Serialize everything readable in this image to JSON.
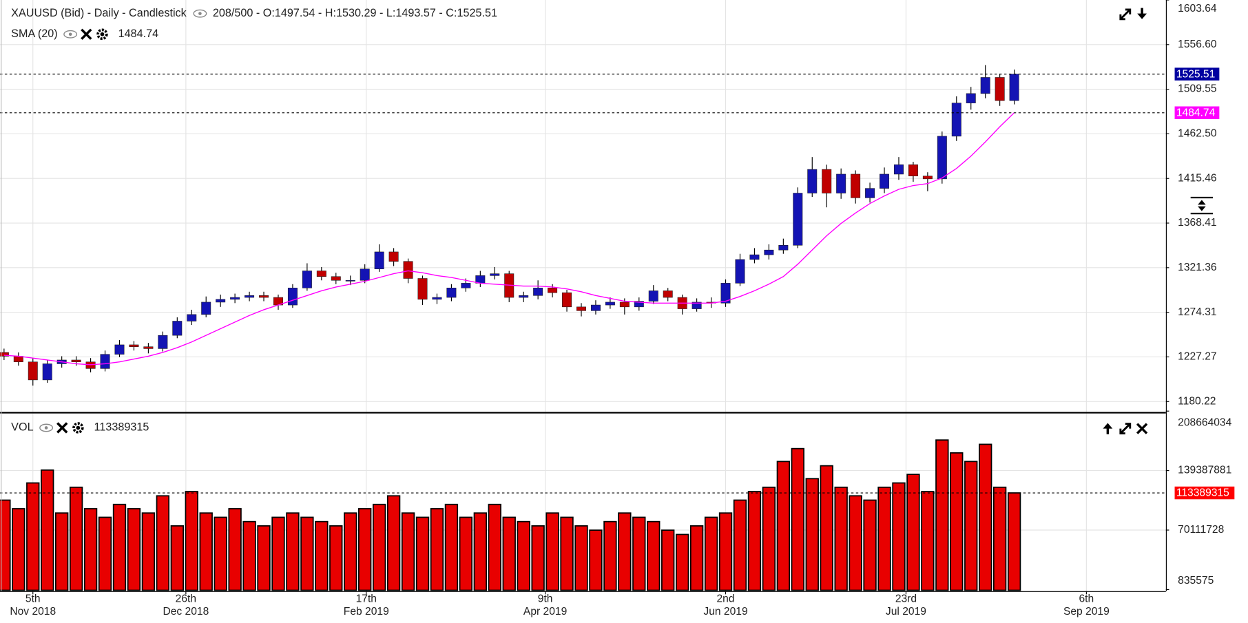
{
  "chart_data": {
    "type": "candlestick",
    "title": "XAUUSD (Bid) - Daily - Candlestick",
    "bars_info": "208/500 - O:1497.54 - H:1530.29 - L:1493.57 - C:1525.51",
    "grid": true,
    "color_up": "#1414b4",
    "color_down": "#c00000",
    "categories": [
      null,
      null,
      null,
      null,
      null,
      null,
      null,
      null,
      null,
      null,
      null,
      null,
      null,
      null,
      null,
      null,
      null,
      null,
      null,
      null,
      null,
      null,
      null,
      null,
      null,
      null,
      null,
      null,
      null,
      null,
      null,
      null,
      null,
      null,
      null,
      null,
      null,
      null,
      null,
      null,
      null,
      null,
      null,
      null,
      null,
      null,
      null,
      null,
      null,
      null,
      null,
      null,
      null,
      null,
      null,
      null,
      null,
      null,
      null,
      null,
      null,
      null,
      null,
      null,
      null,
      null,
      null,
      null,
      null,
      null,
      null
    ],
    "open": [
      1232,
      1228,
      1222,
      1203,
      1220,
      1224,
      1222,
      1215,
      1230,
      1240,
      1238,
      1236,
      1250,
      1265,
      1272,
      1285,
      1288,
      1290,
      1292,
      1290,
      1282,
      1300,
      1318,
      1312,
      1308,
      1308,
      1320,
      1338,
      1328,
      1310,
      1288,
      1290,
      1300,
      1305,
      1313,
      1315,
      1290,
      1292,
      1300,
      1295,
      1280,
      1276,
      1282,
      1285,
      1280,
      1286,
      1297,
      1290,
      1278,
      1285,
      1284,
      1305,
      1330,
      1335,
      1340,
      1345,
      1400,
      1425,
      1400,
      1420,
      1395,
      1405,
      1420,
      1430,
      1418,
      1415,
      1460,
      1495,
      1505,
      1522,
      1497.54
    ],
    "high": [
      1236,
      1232,
      1226,
      1224,
      1228,
      1228,
      1226,
      1234,
      1245,
      1244,
      1242,
      1254,
      1269,
      1277,
      1291,
      1293,
      1294,
      1296,
      1296,
      1293,
      1304,
      1326,
      1322,
      1316,
      1313,
      1325,
      1346,
      1342,
      1331,
      1313,
      1294,
      1304,
      1310,
      1318,
      1322,
      1318,
      1296,
      1308,
      1304,
      1298,
      1284,
      1287,
      1290,
      1289,
      1290,
      1303,
      1300,
      1293,
      1289,
      1290,
      1309,
      1336,
      1342,
      1346,
      1352,
      1406,
      1438,
      1430,
      1426,
      1424,
      1411,
      1427,
      1438,
      1433,
      1422,
      1465,
      1502,
      1512,
      1535,
      1526,
      1530.29
    ],
    "low": [
      1224,
      1218,
      1197,
      1200,
      1216,
      1218,
      1211,
      1212,
      1227,
      1234,
      1231,
      1233,
      1247,
      1261,
      1269,
      1280,
      1284,
      1286,
      1286,
      1277,
      1279,
      1297,
      1308,
      1304,
      1303,
      1305,
      1317,
      1323,
      1305,
      1282,
      1283,
      1286,
      1296,
      1301,
      1309,
      1285,
      1285,
      1288,
      1290,
      1275,
      1270,
      1272,
      1278,
      1272,
      1276,
      1283,
      1286,
      1272,
      1275,
      1279,
      1280,
      1302,
      1326,
      1330,
      1336,
      1342,
      1396,
      1385,
      1394,
      1389,
      1390,
      1400,
      1414,
      1412,
      1402,
      1410,
      1455,
      1488,
      1500,
      1492,
      1493.57
    ],
    "close": [
      1228,
      1222,
      1203,
      1220,
      1224,
      1222,
      1215,
      1230,
      1240,
      1238,
      1236,
      1250,
      1265,
      1272,
      1285,
      1288,
      1290,
      1292,
      1290,
      1282,
      1300,
      1318,
      1312,
      1308,
      1308,
      1320,
      1338,
      1328,
      1310,
      1288,
      1290,
      1300,
      1305,
      1313,
      1315,
      1290,
      1292,
      1300,
      1295,
      1280,
      1276,
      1282,
      1285,
      1280,
      1286,
      1297,
      1290,
      1278,
      1285,
      1284,
      1305,
      1330,
      1335,
      1340,
      1345,
      1400,
      1425,
      1400,
      1420,
      1395,
      1405,
      1420,
      1430,
      1418,
      1415,
      1460,
      1495,
      1505,
      1522,
      1497.54,
      1525.51
    ],
    "sma": {
      "name": "SMA (20)",
      "color": "#ff00ff",
      "values": [
        1229,
        1228,
        1226,
        1224,
        1222,
        1220,
        1219,
        1220,
        1222,
        1225,
        1228,
        1232,
        1237,
        1243,
        1250,
        1257,
        1264,
        1271,
        1277,
        1282,
        1287,
        1292,
        1297,
        1301,
        1304,
        1307,
        1311,
        1315,
        1318,
        1316,
        1313,
        1311,
        1308,
        1305,
        1304,
        1303,
        1302,
        1302,
        1301,
        1299,
        1296,
        1292,
        1289,
        1286,
        1285,
        1284,
        1284,
        1284,
        1284,
        1284,
        1286,
        1291,
        1297,
        1304,
        1312,
        1325,
        1340,
        1355,
        1368,
        1379,
        1389,
        1397,
        1404,
        1408,
        1410,
        1416,
        1426,
        1439,
        1454,
        1470,
        1484.74
      ]
    },
    "volume": {
      "name": "VOL",
      "color": "#e80000",
      "values": [
        105000000,
        95000000,
        125000000,
        140000000,
        90000000,
        120000000,
        95000000,
        85000000,
        100000000,
        95000000,
        90000000,
        110000000,
        75000000,
        115000000,
        90000000,
        85000000,
        95000000,
        80000000,
        75000000,
        85000000,
        90000000,
        85000000,
        80000000,
        75000000,
        90000000,
        95000000,
        100000000,
        110000000,
        90000000,
        85000000,
        95000000,
        100000000,
        85000000,
        90000000,
        100000000,
        85000000,
        80000000,
        75000000,
        90000000,
        85000000,
        75000000,
        70000000,
        80000000,
        90000000,
        85000000,
        80000000,
        70000000,
        65000000,
        75000000,
        85000000,
        90000000,
        105000000,
        115000000,
        120000000,
        150000000,
        165000000,
        130000000,
        145000000,
        120000000,
        110000000,
        105000000,
        120000000,
        125000000,
        135000000,
        115000000,
        175000000,
        160000000,
        150000000,
        170000000,
        120000000,
        113389315
      ]
    },
    "xlim": [
      -0.28,
      80.51
    ],
    "xticks": [
      {
        "value": 2,
        "label": [
          "5th",
          "Nov 2018"
        ]
      },
      {
        "value": 12.6,
        "label": [
          "26th",
          "Dec 2018"
        ]
      },
      {
        "value": 25.1,
        "label": [
          "17th",
          "Feb 2019"
        ]
      },
      {
        "value": 37.5,
        "label": [
          "9th",
          "Apr 2019"
        ]
      },
      {
        "value": 50,
        "label": [
          "2nd",
          "Jun 2019"
        ]
      },
      {
        "value": 62.5,
        "label": [
          "23rd",
          "Jul 2019"
        ]
      },
      {
        "value": 75,
        "label": [
          "6th",
          "Sep 2019"
        ]
      }
    ],
    "ylim": [
      1169.3,
      1603.64
    ],
    "yticks": [
      1180.22,
      1227.27,
      1274.31,
      1321.36,
      1368.41,
      1415.46,
      {
        "value": 1462.5,
        "label": "1462.50"
      },
      1509.55,
      {
        "value": 1556.6,
        "label": "1556.60"
      },
      1603.64
    ],
    "y2lim": [
      -1000000,
      205900000
    ],
    "y2ticks": [
      835575,
      70111728,
      139387881,
      208664034
    ]
  }
}
